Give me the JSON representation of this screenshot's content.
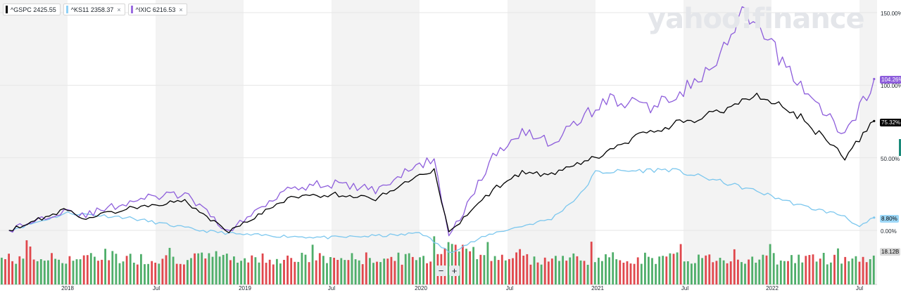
{
  "legend": [
    {
      "label": "^GSPC 2425.55",
      "color": "#000000"
    },
    {
      "label": "^KS11 2358.37",
      "color": "#8fd0f5",
      "closable": true
    },
    {
      "label": "^IXIC 6216.53",
      "color": "#9b6de0",
      "closable": true
    }
  ],
  "legend_close_glyph": "×",
  "watermark": "yahoo!finance",
  "zoom": {
    "out": "−",
    "in": "+"
  },
  "colors": {
    "gspc": "#000000",
    "ks11": "#7cc7ee",
    "ixic": "#8d5ddb",
    "vol_up": "#4fae6a",
    "vol_down": "#e0474c",
    "band": "#f3f3f3"
  },
  "chart_data": {
    "type": "line",
    "y_unit": "%",
    "ylim": [
      -5,
      155
    ],
    "y_ticks": [
      "150.00%",
      "100.00%",
      "50.00%",
      "0.00%"
    ],
    "x_ticks": [
      "2018",
      "Jul",
      "2019",
      "Jul",
      "2020",
      "Jul",
      "2021",
      "Jul",
      "2022",
      "Jul"
    ],
    "x_range": [
      "2017-09",
      "2022-08"
    ],
    "last_values": {
      "ixic": "104.26%",
      "gspc": "75.32%",
      "ks11": "8.80%",
      "volume": "18.12B"
    },
    "series": [
      {
        "name": "^GSPC",
        "x": [
          "2017-09",
          "2018-01",
          "2018-02",
          "2018-06",
          "2018-09",
          "2018-12",
          "2019-04",
          "2019-07",
          "2019-10",
          "2020-01",
          "2020-02",
          "2020-03",
          "2020-06",
          "2020-08",
          "2020-10",
          "2021-01",
          "2021-04",
          "2021-07",
          "2021-09",
          "2021-12",
          "2022-03",
          "2022-06",
          "2022-08"
        ],
        "values": [
          0,
          15,
          8,
          17,
          20,
          -1,
          22,
          25,
          22,
          38,
          42,
          -2,
          28,
          40,
          38,
          50,
          65,
          75,
          80,
          94,
          78,
          50,
          75.32
        ]
      },
      {
        "name": "^KS11",
        "x": [
          "2017-09",
          "2018-01",
          "2018-05",
          "2018-10",
          "2019-01",
          "2019-07",
          "2019-12",
          "2020-01",
          "2020-03",
          "2020-06",
          "2020-10",
          "2020-12",
          "2021-01",
          "2021-06",
          "2021-09",
          "2021-12",
          "2022-03",
          "2022-06",
          "2022-07",
          "2022-08"
        ],
        "values": [
          0,
          12,
          9,
          0,
          -3,
          -5,
          -3,
          -1,
          -15,
          -2,
          8,
          25,
          40,
          42,
          35,
          27,
          17,
          10,
          2,
          8.8
        ]
      },
      {
        "name": "^IXIC",
        "x": [
          "2017-09",
          "2018-01",
          "2018-02",
          "2018-06",
          "2018-09",
          "2018-12",
          "2019-04",
          "2019-07",
          "2019-10",
          "2020-01",
          "2020-02",
          "2020-03",
          "2020-06",
          "2020-08",
          "2020-10",
          "2021-01",
          "2021-02",
          "2021-05",
          "2021-09",
          "2021-11",
          "2021-12",
          "2022-03",
          "2022-06",
          "2022-08"
        ],
        "values": [
          0,
          15,
          10,
          22,
          25,
          -1,
          30,
          32,
          28,
          45,
          50,
          -5,
          50,
          70,
          60,
          85,
          90,
          85,
          110,
          148,
          140,
          100,
          65,
          104.26
        ]
      }
    ],
    "volume": {
      "label": "18.12B",
      "bar_count": 245,
      "seed": 7
    }
  }
}
